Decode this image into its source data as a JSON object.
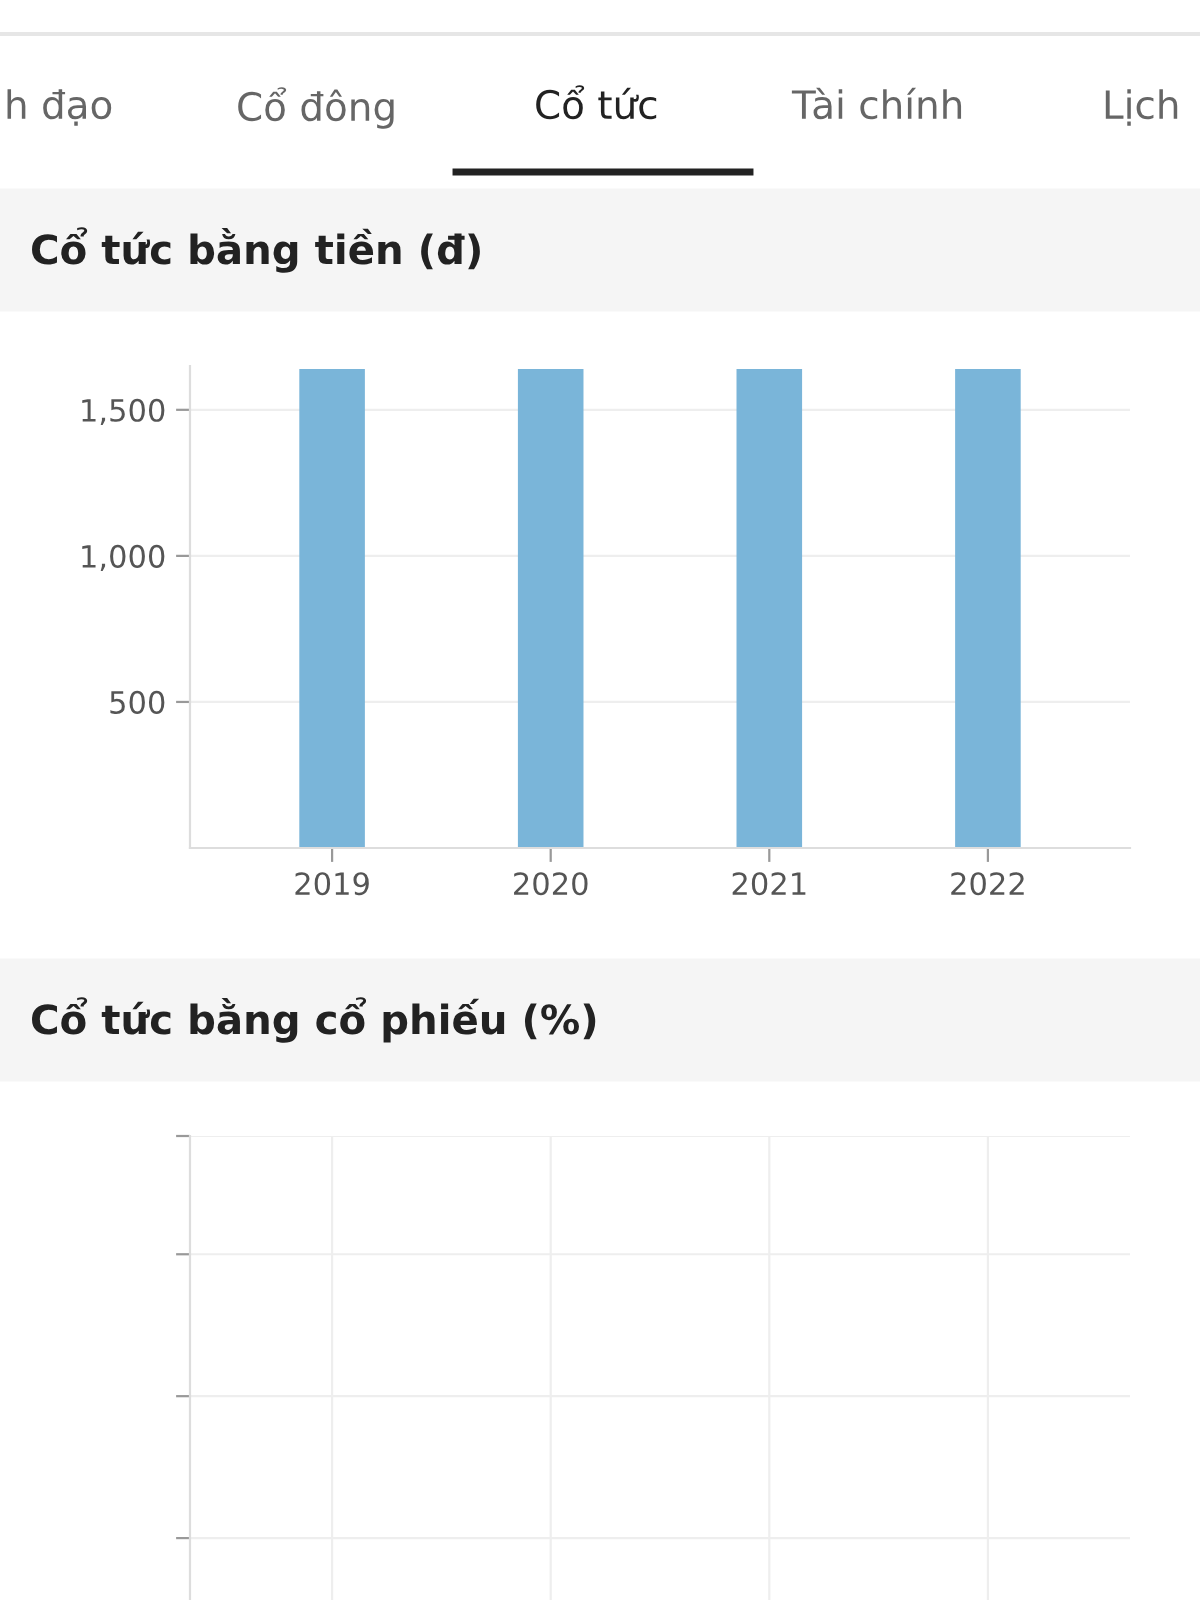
{
  "chart_data": [
    {
      "type": "bar",
      "title": "Cổ tức bằng tiền (đ)",
      "categories": [
        "2019",
        "2020",
        "2021",
        "2022"
      ],
      "values": [
        1640,
        1640,
        1640,
        1640
      ],
      "color": "#7ab5d9",
      "ylim": [
        0,
        1650
      ],
      "yticks": [
        {
          "value": 500,
          "label": "500"
        },
        {
          "value": 1000,
          "label": "1,000"
        },
        {
          "value": 1500,
          "label": "1,500"
        }
      ],
      "grid": "y",
      "annotations": [
        "h đạo",
        "Cổ đông",
        "Cổ tức",
        "Tài chính",
        "Lịch"
      ]
    },
    {
      "type": "other",
      "title": "Cổ tức bằng cổ phiếu (%)"
    }
  ]
}
